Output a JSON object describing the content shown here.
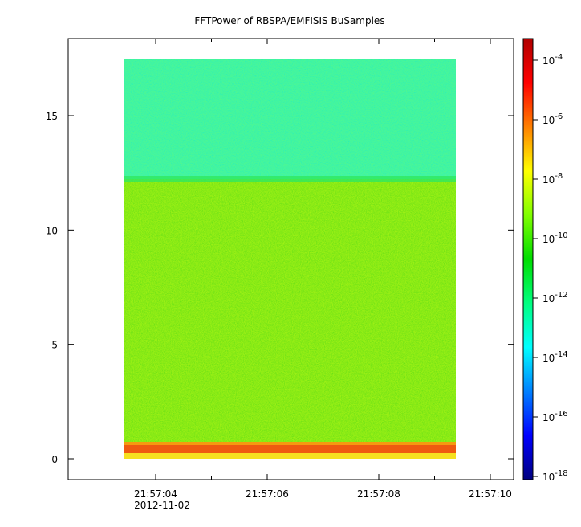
{
  "chart_data": {
    "type": "heatmap",
    "title": "FFTPower of RBSPA/EMFISIS  BuSamples",
    "xlabel": "",
    "ylabel": "",
    "x_ticks": [
      {
        "value": "21:57:04",
        "sub": "2012-11-02"
      },
      {
        "value": "21:57:06",
        "sub": ""
      },
      {
        "value": "21:57:08",
        "sub": ""
      },
      {
        "value": "21:57:10",
        "sub": ""
      }
    ],
    "x_range_seconds": [
      1.6,
      9.5
    ],
    "data_x_range_seconds": [
      3.2,
      9.35
    ],
    "ylim": [
      -1,
      18.5
    ],
    "y_ticks": [
      0,
      5,
      10,
      15
    ],
    "colorbar": {
      "scale": "log",
      "range_exp": [
        -18,
        -3.6
      ],
      "tick_exponents": [
        -4,
        -6,
        -8,
        -10,
        -12,
        -14,
        -16,
        -18
      ],
      "tick_base": "10",
      "colors": [
        "#00007f",
        "#0000ff",
        "#0080ff",
        "#00ffff",
        "#00ff80",
        "#00dd00",
        "#80ff00",
        "#ffff00",
        "#ff8000",
        "#ff0000",
        "#b00000"
      ]
    },
    "bands": [
      {
        "y_from": 0.0,
        "y_to": 0.25,
        "level": "yellow-orange"
      },
      {
        "y_from": 0.25,
        "y_to": 0.75,
        "level": "orange-red"
      },
      {
        "y_from": 0.75,
        "y_to": 12.2,
        "level": "green"
      },
      {
        "y_from": 12.2,
        "y_to": 17.5,
        "level": "blue-green"
      }
    ]
  }
}
